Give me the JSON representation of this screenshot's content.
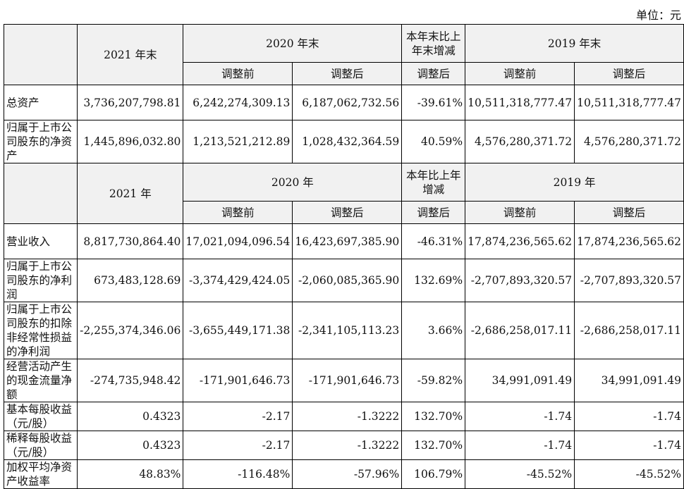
{
  "unit_label": "单位：元",
  "header1": {
    "col_2021": "2021 年末",
    "col_2020": "2020 年末",
    "col_change": "本年末比上年末增减",
    "col_2019": "2019 年末",
    "sub_before": "调整前",
    "sub_after": "调整后",
    "sub_change": "调整后",
    "sub_before_2019": "调整前",
    "sub_after_2019": "调整后"
  },
  "header2": {
    "col_2021": "2021 年",
    "col_2020": "2020 年",
    "col_change": "本年比上年增减",
    "col_2019": "2019 年",
    "sub_before": "调整前",
    "sub_after": "调整后",
    "sub_change": "调整后",
    "sub_before_2019": "调整前",
    "sub_after_2019": "调整后"
  },
  "rows_a": [
    {
      "label": "总资产",
      "v2021": "3,736,207,798.81",
      "v2020_before": "6,242,274,309.13",
      "v2020_after": "6,187,062,732.56",
      "change": "-39.61%",
      "v2019_before": "10,511,318,777.47",
      "v2019_after": "10,511,318,777.47"
    },
    {
      "label": "归属于上市公司股东的净资产",
      "v2021": "1,445,896,032.80",
      "v2020_before": "1,213,521,212.89",
      "v2020_after": "1,028,432,364.59",
      "change": "40.59%",
      "v2019_before": "4,576,280,371.72",
      "v2019_after": "4,576,280,371.72"
    }
  ],
  "rows_b": [
    {
      "label": "营业收入",
      "v2021": "8,817,730,864.40",
      "v2020_before": "17,021,094,096.54",
      "v2020_after": "16,423,697,385.90",
      "change": "-46.31%",
      "v2019_before": "17,874,236,565.62",
      "v2019_after": "17,874,236,565.62"
    },
    {
      "label": "归属于上市公司股东的净利润",
      "v2021": "673,483,128.69",
      "v2020_before": "-3,374,429,424.05",
      "v2020_after": "-2,060,085,365.90",
      "change": "132.69%",
      "v2019_before": "-2,707,893,320.57",
      "v2019_after": "-2,707,893,320.57"
    },
    {
      "label": "归属于上市公司股东的扣除非经常性损益的净利润",
      "v2021": "-2,255,374,346.06",
      "v2020_before": "-3,655,449,171.38",
      "v2020_after": "-2,341,105,113.23",
      "change": "3.66%",
      "v2019_before": "-2,686,258,017.11",
      "v2019_after": "-2,686,258,017.11"
    },
    {
      "label": "经营活动产生的现金流量净额",
      "v2021": "-274,735,948.42",
      "v2020_before": "-171,901,646.73",
      "v2020_after": "-171,901,646.73",
      "change": "-59.82%",
      "v2019_before": "34,991,091.49",
      "v2019_after": "34,991,091.49"
    },
    {
      "label": "基本每股收益（元/股）",
      "v2021": "0.4323",
      "v2020_before": "-2.17",
      "v2020_after": "-1.3222",
      "change": "132.70%",
      "v2019_before": "-1.74",
      "v2019_after": "-1.74"
    },
    {
      "label": "稀释每股收益（元/股）",
      "v2021": "0.4323",
      "v2020_before": "-2.17",
      "v2020_after": "-1.3222",
      "change": "132.70%",
      "v2019_before": "-1.74",
      "v2019_after": "-1.74"
    },
    {
      "label": "加权平均净资产收益率",
      "v2021": "48.83%",
      "v2020_before": "-116.48%",
      "v2020_after": "-57.96%",
      "change": "106.79%",
      "v2019_before": "-45.52%",
      "v2019_after": "-45.52%"
    }
  ]
}
